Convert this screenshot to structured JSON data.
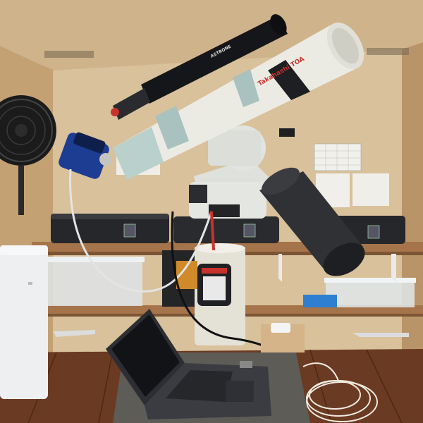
{
  "scene": {
    "title": "Telescope observatory interior",
    "main_tube_brand": "Takahashi TOA",
    "guidescope_brand": "ASTRONE"
  },
  "colors": {
    "wall": "#d9c19a",
    "ceiling": "#cdb189",
    "floor": "#6a3a22",
    "shelf": "#a9774c",
    "tube_white": "#ece9df",
    "mount_white": "#dde0da",
    "dark": "#1c1d20",
    "dew_shield": "#2f3134",
    "camera_blue": "#1d3d92",
    "accent_red": "#c8322c",
    "case_black": "#26272a",
    "cable_white": "#e6e6e6",
    "laptop": "#34363b",
    "pier": "#e3e0d6",
    "box_blue": "#2e7fd1"
  }
}
